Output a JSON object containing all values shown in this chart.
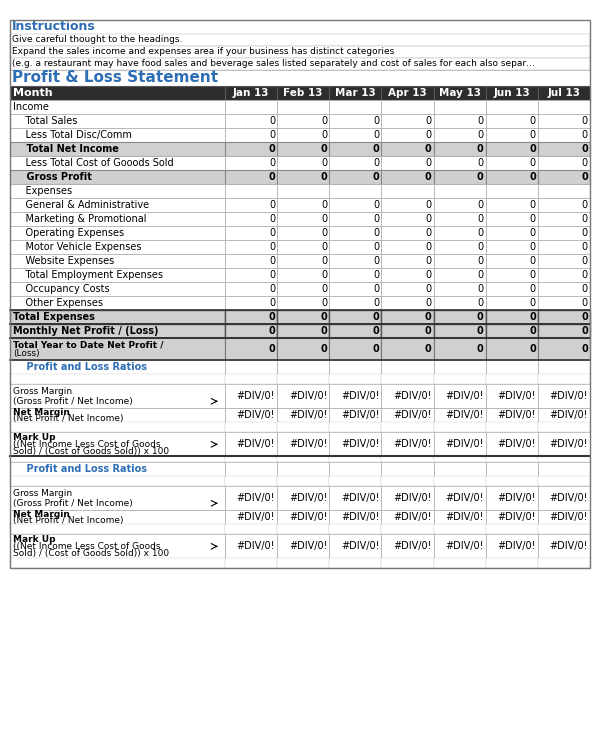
{
  "title": "Profit & Loss Statement",
  "instructions_title": "Instructions",
  "instructions_lines": [
    "Give careful thought to the headings.",
    "Expand the sales income and expenses area if your business has distinct categories",
    "(e.g. a restaurant may have food sales and beverage sales listed separately and cost of sales for each also separ…"
  ],
  "months": [
    "Jan 13",
    "Feb 13",
    "Mar 13",
    "Apr 13",
    "May 13",
    "Jun 13",
    "Jul 13"
  ],
  "col_header_bg": "#2f2f2f",
  "col_header_fg": "#ffffff",
  "section_bg_light": "#d9d9d9",
  "section_bg_dark": "#bfbfbf",
  "bold_row_bg": "#c0c0c0",
  "white_bg": "#ffffff",
  "blue_title": "#1f4e79",
  "blue_section": "#1f5c99",
  "rows": [
    {
      "label": "Income",
      "indent": 0,
      "style": "plain",
      "values": [
        "",
        "",
        "",
        "",
        "",
        "",
        ""
      ]
    },
    {
      "label": "    Total Sales",
      "indent": 1,
      "style": "normal",
      "values": [
        "0",
        "0",
        "0",
        "0",
        "0",
        "0",
        "0"
      ]
    },
    {
      "label": "    Less Total Disc/Comm",
      "indent": 1,
      "style": "normal",
      "values": [
        "0",
        "0",
        "0",
        "0",
        "0",
        "0",
        "0"
      ]
    },
    {
      "label": "    Total Net Income",
      "indent": 1,
      "style": "bold_gray",
      "values": [
        "0",
        "0",
        "0",
        "0",
        "0",
        "0",
        "0"
      ]
    },
    {
      "label": "    Less Total Cost of Gooods Sold",
      "indent": 1,
      "style": "normal",
      "values": [
        "0",
        "0",
        "0",
        "0",
        "0",
        "0",
        "0"
      ]
    },
    {
      "label": "    Gross Profit",
      "indent": 1,
      "style": "bold_gray",
      "values": [
        "0",
        "0",
        "0",
        "0",
        "0",
        "0",
        "0"
      ]
    },
    {
      "label": "    Expenses",
      "indent": 1,
      "style": "plain",
      "values": [
        "",
        "",
        "",
        "",
        "",
        "",
        ""
      ]
    },
    {
      "label": "    General & Administrative",
      "indent": 1,
      "style": "normal",
      "values": [
        "0",
        "0",
        "0",
        "0",
        "0",
        "0",
        "0"
      ]
    },
    {
      "label": "    Marketing & Promotional",
      "indent": 1,
      "style": "normal",
      "values": [
        "0",
        "0",
        "0",
        "0",
        "0",
        "0",
        "0"
      ]
    },
    {
      "label": "    Operating Expenses",
      "indent": 1,
      "style": "normal",
      "values": [
        "0",
        "0",
        "0",
        "0",
        "0",
        "0",
        "0"
      ]
    },
    {
      "label": "    Motor Vehicle Expenses",
      "indent": 1,
      "style": "normal",
      "values": [
        "0",
        "0",
        "0",
        "0",
        "0",
        "0",
        "0"
      ]
    },
    {
      "label": "    Website Expenses",
      "indent": 1,
      "style": "normal",
      "values": [
        "0",
        "0",
        "0",
        "0",
        "0",
        "0",
        "0"
      ]
    },
    {
      "label": "    Total Employment Expenses",
      "indent": 1,
      "style": "normal",
      "values": [
        "0",
        "0",
        "0",
        "0",
        "0",
        "0",
        "0"
      ]
    },
    {
      "label": "    Occupancy Costs",
      "indent": 1,
      "style": "normal",
      "values": [
        "0",
        "0",
        "0",
        "0",
        "0",
        "0",
        "0"
      ]
    },
    {
      "label": "    Other Expenses",
      "indent": 1,
      "style": "normal",
      "values": [
        "0",
        "0",
        "0",
        "0",
        "0",
        "0",
        "0"
      ]
    },
    {
      "label": "Total Expenses",
      "indent": 0,
      "style": "bold_dark",
      "values": [
        "0",
        "0",
        "0",
        "0",
        "0",
        "0",
        "0"
      ]
    },
    {
      "label": "Monthly Net Profit / (Loss)",
      "indent": 0,
      "style": "bold_dark",
      "values": [
        "0",
        "0",
        "0",
        "0",
        "0",
        "0",
        "0"
      ]
    },
    {
      "label": "Total Year to Date Net Profit /\n(Loss)",
      "indent": 0,
      "style": "bold_dark2",
      "values": [
        "0",
        "0",
        "0",
        "0",
        "0",
        "0",
        "0"
      ]
    },
    {
      "label": "    Profit and Loss Ratios",
      "indent": 1,
      "style": "section_title",
      "values": [
        "",
        "",
        "",
        "",
        "",
        "",
        ""
      ]
    },
    {
      "label": "",
      "indent": 0,
      "style": "empty",
      "values": [
        "",
        "",
        "",
        "",
        "",
        "",
        ""
      ]
    },
    {
      "label": "Gross Margin\n(Gross Profit / Net Income)",
      "indent": 0,
      "style": "normal_arrow",
      "values": [
        "#DIV/0!",
        "#DIV/0!",
        "#DIV/0!",
        "#DIV/0!",
        "#DIV/0!",
        "#DIV/0!",
        "#DIV/0!"
      ]
    },
    {
      "label": "Net Margin\n(Net Profit / Net Income)",
      "indent": 0,
      "style": "bold_sub",
      "values": [
        "#DIV/0!",
        "#DIV/0!",
        "#DIV/0!",
        "#DIV/0!",
        "#DIV/0!",
        "#DIV/0!",
        "#DIV/0!"
      ]
    },
    {
      "label": "",
      "indent": 0,
      "style": "empty",
      "values": [
        "",
        "",
        "",
        "",
        "",
        "",
        ""
      ]
    },
    {
      "label": "Mark Up\n((Net Income Less Cost of Goods\nSold) / (Cost of Goods Sold)) x 100",
      "indent": 0,
      "style": "bold_arrow",
      "values": [
        "#DIV/0!",
        "#DIV/0!",
        "#DIV/0!",
        "#DIV/0!",
        "#DIV/0!",
        "#DIV/0!",
        "#DIV/0!"
      ]
    },
    {
      "label": "",
      "indent": 0,
      "style": "empty_thick",
      "values": [
        "",
        "",
        "",
        "",
        "",
        "",
        ""
      ]
    },
    {
      "label": "    Profit and Loss Ratios",
      "indent": 1,
      "style": "section_title",
      "values": [
        "",
        "",
        "",
        "",
        "",
        "",
        ""
      ]
    },
    {
      "label": "",
      "indent": 0,
      "style": "empty",
      "values": [
        "",
        "",
        "",
        "",
        "",
        "",
        ""
      ]
    },
    {
      "label": "Gross Margin\n(Gross Profit / Net Income)",
      "indent": 0,
      "style": "normal_arrow",
      "values": [
        "#DIV/0!",
        "#DIV/0!",
        "#DIV/0!",
        "#DIV/0!",
        "#DIV/0!",
        "#DIV/0!",
        "#DIV/0!"
      ]
    },
    {
      "label": "Net Margin\n(Net Profit / Net Income)",
      "indent": 0,
      "style": "bold_sub",
      "values": [
        "#DIV/0!",
        "#DIV/0!",
        "#DIV/0!",
        "#DIV/0!",
        "#DIV/0!",
        "#DIV/0!",
        "#DIV/0!"
      ]
    },
    {
      "label": "",
      "indent": 0,
      "style": "empty",
      "values": [
        "",
        "",
        "",
        "",
        "",
        "",
        ""
      ]
    },
    {
      "label": "Mark Up\n((Net Income Less Cost of Goods\nSold) / (Cost of Goods Sold)) x 100",
      "indent": 0,
      "style": "bold_arrow",
      "values": [
        "#DIV/0!",
        "#DIV/0!",
        "#DIV/0!",
        "#DIV/0!",
        "#DIV/0!",
        "#DIV/0!",
        "#DIV/0!"
      ]
    },
    {
      "label": "",
      "indent": 0,
      "style": "empty_last",
      "values": [
        "",
        "",
        "",
        "",
        "",
        "",
        ""
      ]
    }
  ]
}
